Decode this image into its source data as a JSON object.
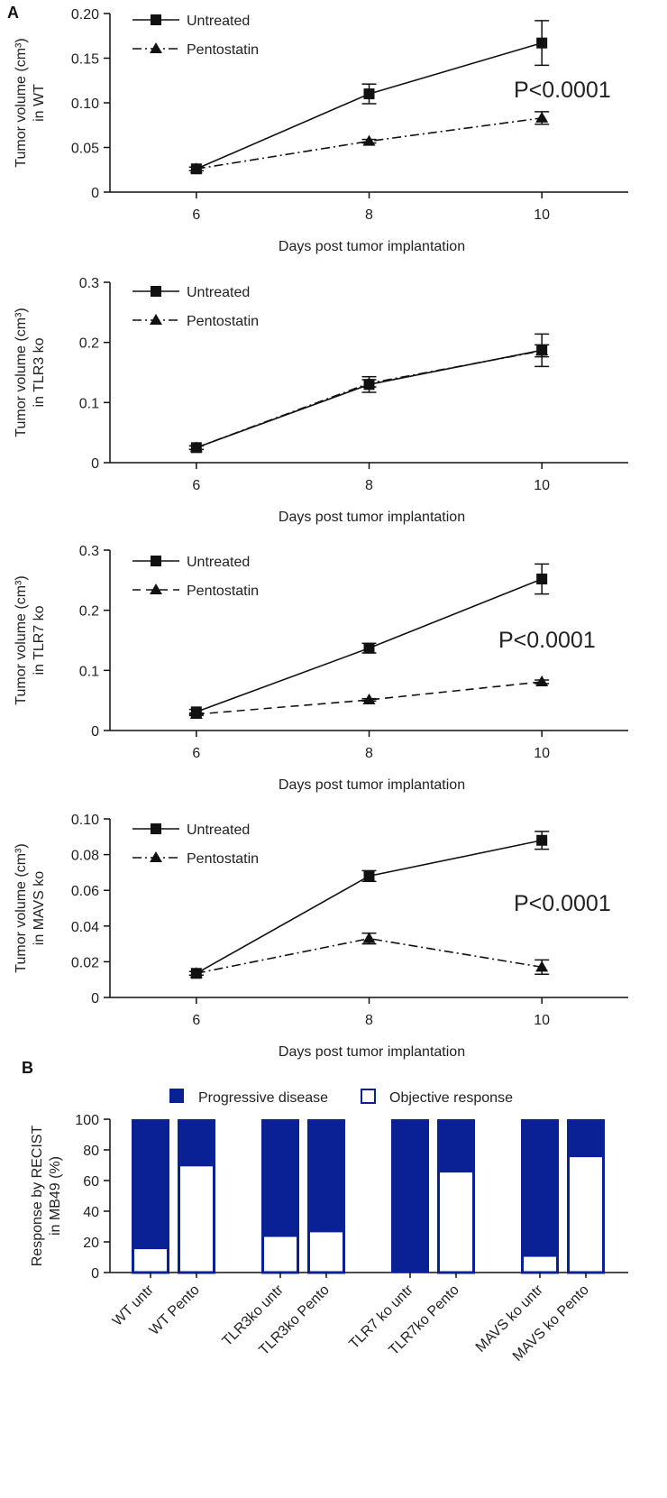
{
  "panel_labels": {
    "a": "A",
    "b": "B"
  },
  "colors": {
    "line": "#111111",
    "bar_fill": "#0a2196",
    "bar_empty": "#ffffff"
  },
  "chart_data": [
    {
      "type": "line",
      "ylabel": [
        "Tumor volume (cm³)",
        "in WT"
      ],
      "xlabel": "Days post tumor implantation",
      "x": [
        6,
        8,
        10
      ],
      "xlim": [
        5,
        11
      ],
      "ylim": [
        0,
        0.2
      ],
      "yticks": [
        "0",
        "0.05",
        "0.10",
        "0.15",
        "0.20"
      ],
      "yticks_values": [
        0,
        0.05,
        0.1,
        0.15,
        0.2
      ],
      "annotation": "P<0.0001",
      "series": [
        {
          "name": "Untreated",
          "marker": "square",
          "dash": "solid",
          "values": [
            0.026,
            0.11,
            0.167
          ],
          "errors": [
            0.002,
            0.011,
            0.025
          ]
        },
        {
          "name": "Pentostatin",
          "marker": "triangle",
          "dash": "dashdot",
          "values": [
            0.026,
            0.057,
            0.083
          ],
          "errors": [
            0.002,
            0.002,
            0.007
          ]
        }
      ]
    },
    {
      "type": "line",
      "ylabel": [
        "Tumor volume (cm³)",
        "in TLR3 ko"
      ],
      "xlabel": "Days post tumor implantation",
      "x": [
        6,
        8,
        10
      ],
      "xlim": [
        5,
        11
      ],
      "ylim": [
        0,
        0.3
      ],
      "yticks": [
        "0",
        "0.1",
        "0.2",
        "0.3"
      ],
      "yticks_values": [
        0,
        0.1,
        0.2,
        0.3
      ],
      "annotation": "",
      "series": [
        {
          "name": "Untreated",
          "marker": "square",
          "dash": "solid",
          "values": [
            0.025,
            0.13,
            0.187
          ],
          "errors": [
            0.003,
            0.013,
            0.027
          ]
        },
        {
          "name": "Pentostatin",
          "marker": "triangle",
          "dash": "dashdot",
          "values": [
            0.025,
            0.132,
            0.186
          ],
          "errors": [
            0.003,
            0.006,
            0.01
          ]
        }
      ]
    },
    {
      "type": "line",
      "ylabel": [
        "Tumor volume (cm³)",
        "in TLR7 ko"
      ],
      "xlabel": "Days post tumor implantation",
      "x": [
        6,
        8,
        10
      ],
      "xlim": [
        5,
        11
      ],
      "ylim": [
        0,
        0.3
      ],
      "yticks": [
        "0",
        "0.1",
        "0.2",
        "0.3"
      ],
      "yticks_values": [
        0,
        0.1,
        0.2,
        0.3
      ],
      "annotation": "P<0.0001",
      "series": [
        {
          "name": "Untreated",
          "marker": "square",
          "dash": "solid",
          "values": [
            0.031,
            0.137,
            0.252
          ],
          "errors": [
            0.004,
            0.008,
            0.025
          ]
        },
        {
          "name": "Pentostatin",
          "marker": "triangle",
          "dash": "dashed",
          "values": [
            0.027,
            0.051,
            0.081
          ],
          "errors": [
            0.002,
            0.002,
            0.003
          ]
        }
      ]
    },
    {
      "type": "line",
      "ylabel": [
        "Tumor volume (cm³)",
        "in MAVS ko"
      ],
      "xlabel": "Days post tumor implantation",
      "x": [
        6,
        8,
        10
      ],
      "xlim": [
        5,
        11
      ],
      "ylim": [
        0,
        0.1
      ],
      "yticks": [
        "0",
        "0.02",
        "0.04",
        "0.06",
        "0.08",
        "0.10"
      ],
      "yticks_values": [
        0,
        0.02,
        0.04,
        0.06,
        0.08,
        0.1
      ],
      "annotation": "P<0.0001",
      "series": [
        {
          "name": "Untreated",
          "marker": "square",
          "dash": "solid",
          "values": [
            0.0135,
            0.068,
            0.088
          ],
          "errors": [
            0.001,
            0.003,
            0.005
          ]
        },
        {
          "name": "Pentostatin",
          "marker": "triangle",
          "dash": "dashdot",
          "values": [
            0.0135,
            0.033,
            0.017
          ],
          "errors": [
            0.001,
            0.003,
            0.004
          ]
        }
      ]
    },
    {
      "type": "bar",
      "stacked": true,
      "ylabel": [
        "Response by RECIST",
        "in MB49 (%)"
      ],
      "ylim": [
        0,
        100
      ],
      "yticks": [
        "0",
        "20",
        "40",
        "60",
        "80",
        "100"
      ],
      "yticks_values": [
        0,
        20,
        40,
        60,
        80,
        100
      ],
      "categories": [
        "WT untr",
        "WT Pento",
        "TLR3ko untr",
        "TLR3ko Pento",
        "TLR7 ko untr",
        "TLR7ko Pento",
        "MAVS ko untr",
        "MAVS ko Pento"
      ],
      "legend_position": "top",
      "series": [
        {
          "name": "Objective response",
          "values": [
            17,
            71,
            25,
            28,
            0,
            67,
            12,
            77
          ]
        },
        {
          "name": "Progressive disease",
          "values": [
            83,
            29,
            75,
            72,
            100,
            33,
            88,
            23
          ]
        }
      ]
    }
  ]
}
